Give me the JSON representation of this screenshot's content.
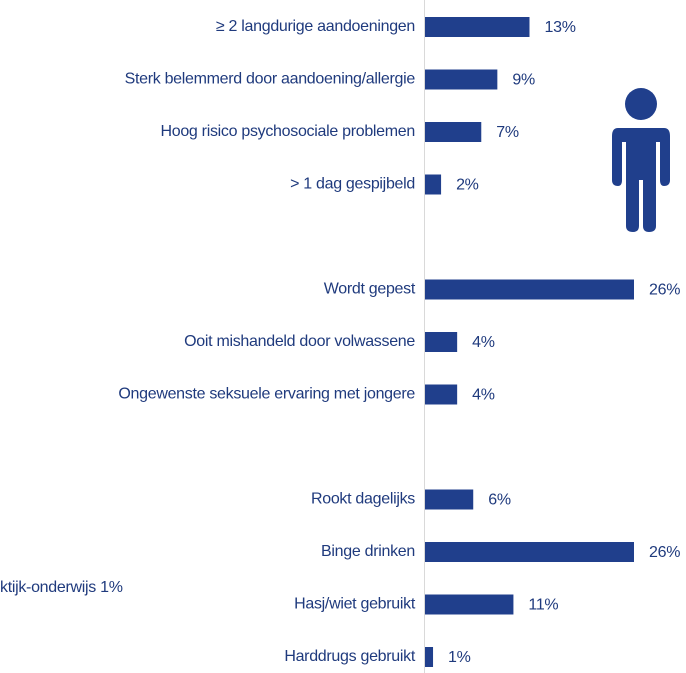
{
  "chart_data": {
    "type": "bar",
    "orientation": "horizontal",
    "color": "#203f8c",
    "categories": [
      "≥ 2 langdurige aandoeningen",
      "Sterk belemmerd door aandoening/allergie",
      "Hoog risico psychosociale problemen",
      "> 1 dag gespijbeld",
      null,
      "Wordt gepest",
      "Ooit mishandeld door volwassene",
      "Ongewenste seksuele ervaring met jongere",
      null,
      "Rookt dagelijks",
      "Binge drinken",
      "Hasj/wiet gebruikt",
      "Harddrugs gebruikt"
    ],
    "values": [
      13,
      9,
      7,
      2,
      null,
      26,
      4,
      4,
      null,
      6,
      26,
      11,
      1
    ],
    "value_labels": [
      "13%",
      "9%",
      "7%",
      "2%",
      null,
      "26%",
      "4%",
      "4%",
      null,
      "6%",
      "26%",
      "11%",
      "1%"
    ],
    "annotations": [
      "ktijk-onderwijs  1%"
    ]
  }
}
